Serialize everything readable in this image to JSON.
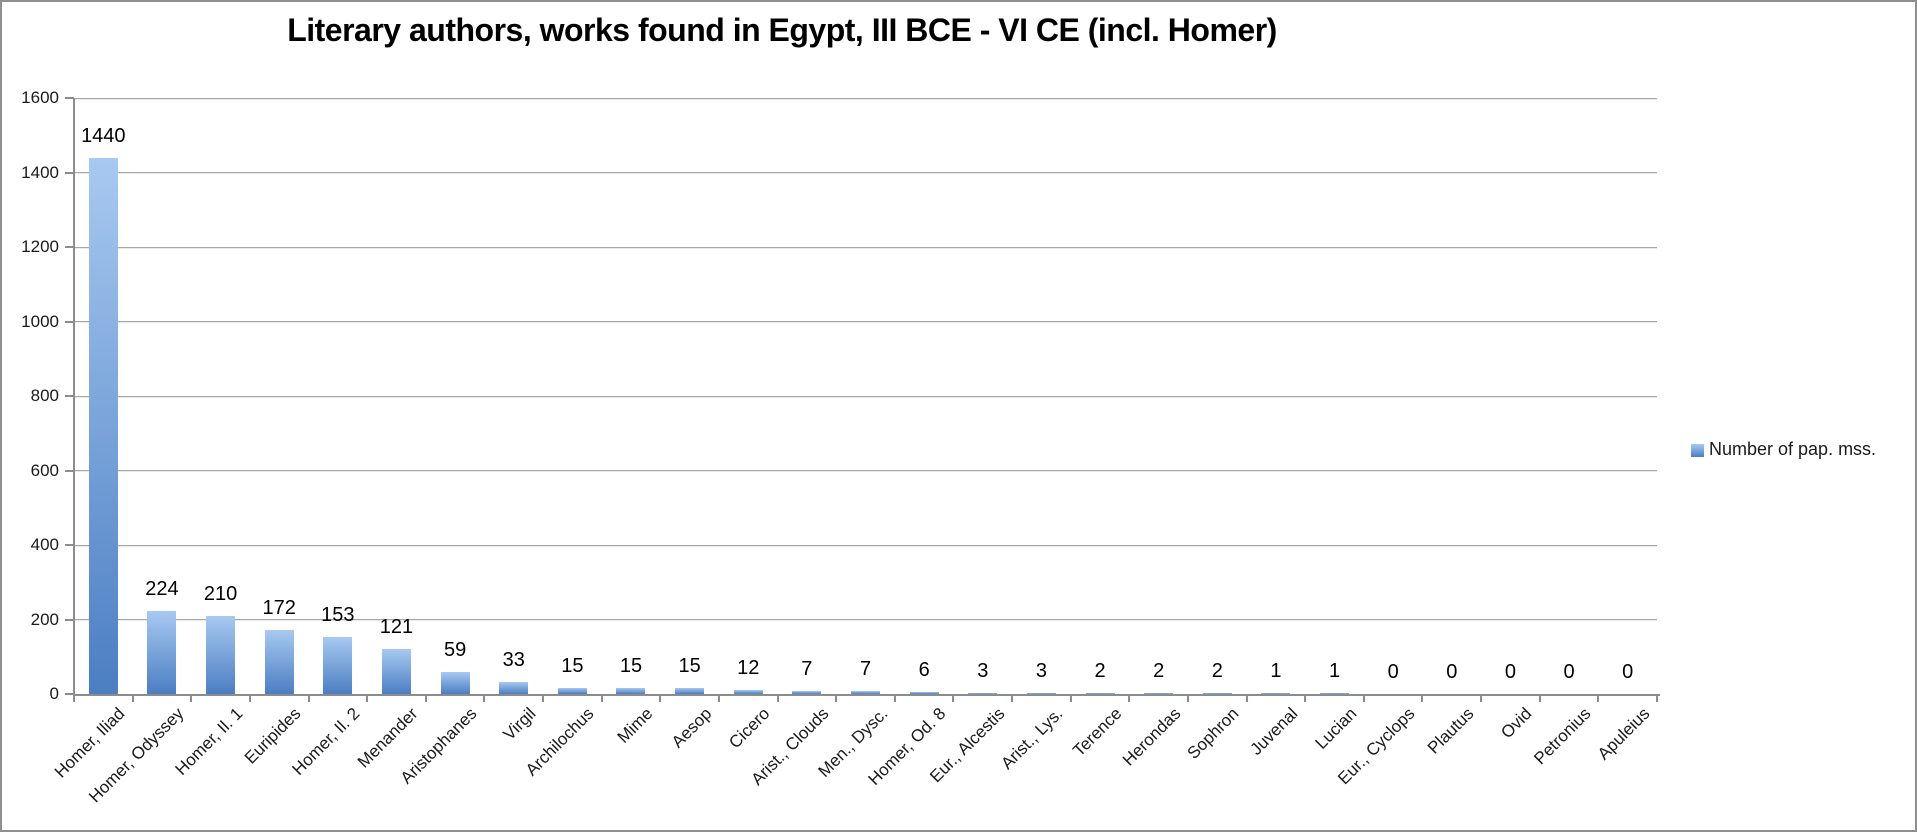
{
  "chart_data": {
    "type": "bar",
    "title": "Literary authors, works found in Egypt, III BCE - VI CE (incl. Homer)",
    "categories": [
      "Homer, Iliad",
      "Homer, Odyssey",
      "Homer, Il. 1",
      "Euripides",
      "Homer, Il. 2",
      "Menander",
      "Aristophanes",
      "Virgil",
      "Archilochus",
      "Mime",
      "Aesop",
      "Cicero",
      "Arist., Clouds",
      "Men., Dysc.",
      "Homer, Od. 8",
      "Eur., Alcestis",
      "Arist., Lys.",
      "Terence",
      "Herondas",
      "Sophron",
      "Juvenal",
      "Lucian",
      "Eur., Cyclops",
      "Plautus",
      "Ovid",
      "Petronius",
      "Apuleius"
    ],
    "series": [
      {
        "name": "Number of pap. mss.",
        "values": [
          1440,
          224,
          210,
          172,
          153,
          121,
          59,
          33,
          15,
          15,
          15,
          12,
          7,
          7,
          6,
          3,
          3,
          2,
          2,
          2,
          1,
          1,
          0,
          0,
          0,
          0,
          0
        ]
      }
    ],
    "xlabel": "",
    "ylabel": "",
    "ylim": [
      0,
      1600
    ],
    "ytick_interval": 200,
    "yticks": [
      0,
      200,
      400,
      600,
      800,
      1000,
      1200,
      1400,
      1600
    ],
    "grid": true,
    "data_labels": true,
    "legend_position": "right",
    "colors": {
      "bar_gradient_top": "#a8c9f1",
      "bar_gradient_bottom": "#4b7ec2",
      "gridline": "#a8a8a8",
      "axis": "#8c8c8c",
      "text": "#000000",
      "border": "#8f8f8f"
    }
  }
}
